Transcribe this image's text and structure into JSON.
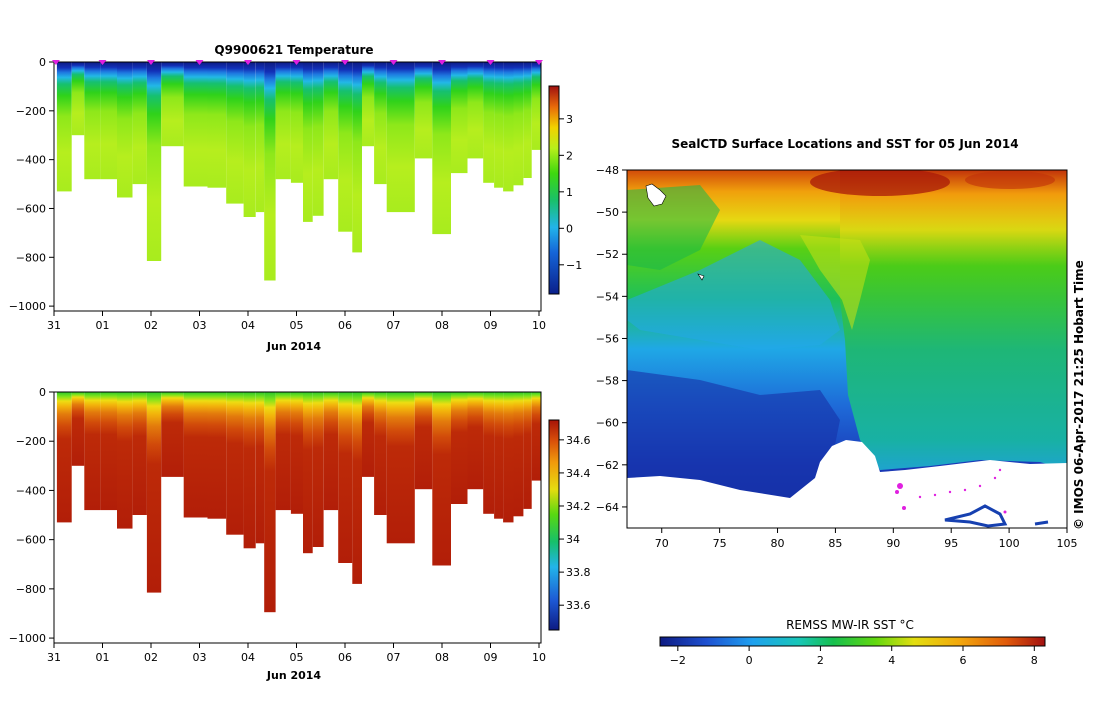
{
  "chart_data": [
    {
      "type": "heatmap",
      "title": "Q9900621  Temperature",
      "xlabel": "Jun 2014",
      "x_ticks": [
        "31",
        "01",
        "02",
        "03",
        "04",
        "05",
        "06",
        "07",
        "08",
        "09",
        "10"
      ],
      "y_ticks": [
        0,
        -200,
        -400,
        -600,
        -800,
        -1000
      ],
      "ylim": [
        -1020,
        0
      ],
      "colorbar": {
        "min": -1.8,
        "max": 3.9,
        "ticks": [
          -1,
          0,
          1,
          2,
          3
        ]
      },
      "profiles": [
        {
          "day": 0.26,
          "depth": -530
        },
        {
          "day": 0.47,
          "depth": -300
        },
        {
          "day": 0.78,
          "depth": -480
        },
        {
          "day": 1.14,
          "depth": -480
        },
        {
          "day": 1.46,
          "depth": -555
        },
        {
          "day": 1.78,
          "depth": -500
        },
        {
          "day": 2.05,
          "depth": -815
        },
        {
          "day": 2.37,
          "depth": -345
        },
        {
          "day": 2.98,
          "depth": -510
        },
        {
          "day": 3.35,
          "depth": -515
        },
        {
          "day": 3.75,
          "depth": -580
        },
        {
          "day": 4.07,
          "depth": -635
        },
        {
          "day": 4.25,
          "depth": -615
        },
        {
          "day": 4.42,
          "depth": -895
        },
        {
          "day": 4.72,
          "depth": -480
        },
        {
          "day": 5.05,
          "depth": -495
        },
        {
          "day": 5.22,
          "depth": -655
        },
        {
          "day": 5.45,
          "depth": -630
        },
        {
          "day": 5.67,
          "depth": -480
        },
        {
          "day": 6.05,
          "depth": -695
        },
        {
          "day": 6.25,
          "depth": -780
        },
        {
          "day": 6.45,
          "depth": -345
        },
        {
          "day": 6.75,
          "depth": -500
        },
        {
          "day": 6.97,
          "depth": -615
        },
        {
          "day": 7.3,
          "depth": -615
        },
        {
          "day": 7.58,
          "depth": -395
        },
        {
          "day": 8.02,
          "depth": -705
        },
        {
          "day": 8.35,
          "depth": -455
        },
        {
          "day": 8.7,
          "depth": -395
        },
        {
          "day": 9.0,
          "depth": -495
        },
        {
          "day": 9.15,
          "depth": -515
        },
        {
          "day": 9.37,
          "depth": -530
        },
        {
          "day": 9.58,
          "depth": -505
        },
        {
          "day": 9.78,
          "depth": -475
        },
        {
          "day": 9.92,
          "depth": -360
        }
      ],
      "markers": [
        0.04,
        1.0,
        2.0,
        3.0,
        4.0,
        5.0,
        6.0,
        7.0,
        8.0,
        9.0,
        10.0
      ]
    },
    {
      "type": "heatmap",
      "xlabel": "Jun 2014",
      "x_ticks": [
        "31",
        "01",
        "02",
        "03",
        "04",
        "05",
        "06",
        "07",
        "08",
        "09",
        "10"
      ],
      "y_ticks": [
        0,
        -200,
        -400,
        -600,
        -800,
        -1000
      ],
      "ylim": [
        -1020,
        0
      ],
      "colorbar": {
        "min": 33.45,
        "max": 34.72,
        "ticks": [
          33.6,
          33.8,
          34,
          34.2,
          34.4,
          34.6
        ]
      }
    },
    {
      "type": "heatmap",
      "title": "SealCTD Surface Locations and SST for 05 Jun 2014",
      "x_ticks": [
        70,
        75,
        80,
        85,
        90,
        95,
        100,
        105
      ],
      "y_ticks": [
        -48,
        -50,
        -52,
        -54,
        -56,
        -58,
        -60,
        -62,
        -64
      ],
      "xlim": [
        67,
        105
      ],
      "ylim": [
        -65,
        -48
      ],
      "colorbar": {
        "label": "REMSS MW-IR SST °C",
        "min": -2.5,
        "max": 8.3,
        "ticks": [
          -2,
          0,
          2,
          4,
          6,
          8
        ]
      },
      "side_text": "© IMOS 06-Apr-2017 21:25 Hobart Time"
    }
  ]
}
